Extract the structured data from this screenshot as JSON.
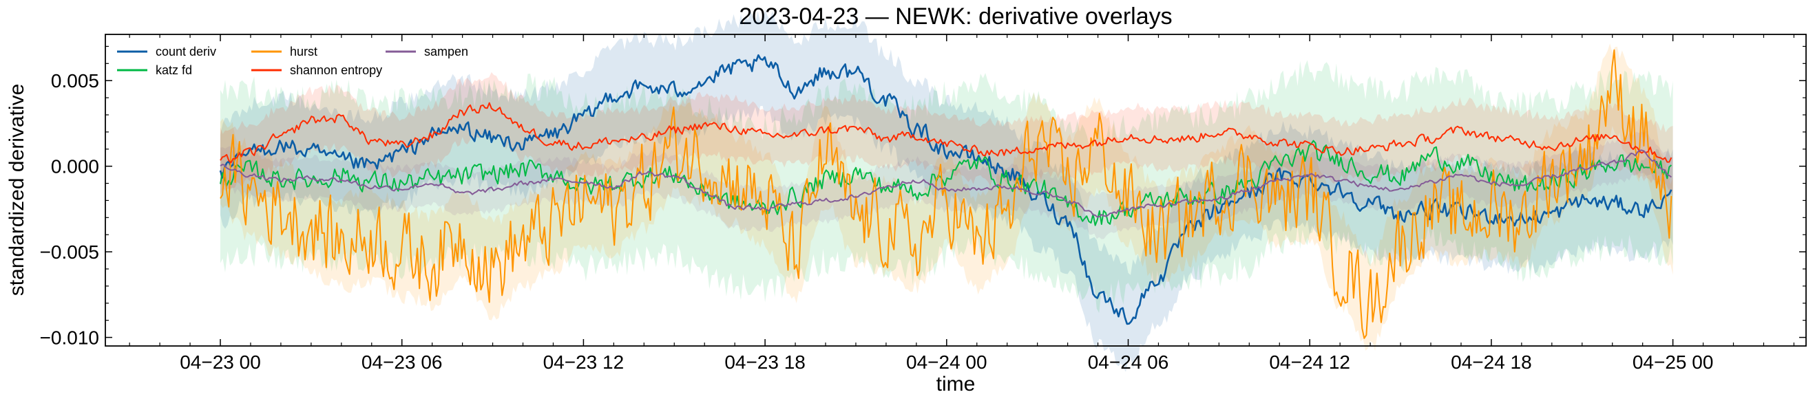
{
  "chart_data": {
    "type": "line",
    "title": "2023-04-23 — NEWK: derivative overlays",
    "xlabel": "time",
    "ylabel": "standardized derivative",
    "x_range_hours": [
      -3.8,
      52.4
    ],
    "ylim": [
      -0.0105,
      0.0077
    ],
    "x_ticks": [
      {
        "hour": 0,
        "label": "04−23 00"
      },
      {
        "hour": 6,
        "label": "04−23 06"
      },
      {
        "hour": 12,
        "label": "04−23 12"
      },
      {
        "hour": 18,
        "label": "04−23 18"
      },
      {
        "hour": 24,
        "label": "04−24 00"
      },
      {
        "hour": 30,
        "label": "04−24 06"
      },
      {
        "hour": 36,
        "label": "04−24 12"
      },
      {
        "hour": 42,
        "label": "04−24 18"
      },
      {
        "hour": 48,
        "label": "04−25 00"
      }
    ],
    "y_ticks": [
      {
        "value": 0.005,
        "label": "0.005"
      },
      {
        "value": 0.0,
        "label": "0.000"
      },
      {
        "value": -0.005,
        "label": "−0.005"
      },
      {
        "value": -0.01,
        "label": "−0.010"
      }
    ],
    "legend": {
      "position": "top-left",
      "columns": 3
    },
    "series": [
      {
        "name": "count deriv",
        "color": "#0C5DA5",
        "band_color": "#0C5DA5",
        "band_opacity": 0.14,
        "band_half_width": 0.0028,
        "x_hours": [
          0,
          1,
          2,
          3,
          4,
          5,
          6,
          7,
          8,
          9,
          10,
          11,
          12,
          13,
          14,
          15,
          16,
          17,
          18,
          19,
          20,
          21,
          22,
          23,
          24,
          25,
          26,
          27,
          28,
          29,
          30,
          31,
          32,
          33,
          34,
          35,
          36,
          37,
          38,
          39,
          40,
          41,
          42,
          43,
          44,
          45,
          46,
          47,
          48
        ],
        "values": [
          -0.0005,
          0.0008,
          0.0012,
          0.0008,
          0.0003,
          0.0,
          0.0008,
          0.0018,
          0.0022,
          0.0016,
          0.0013,
          0.0019,
          0.0028,
          0.0042,
          0.0046,
          0.0044,
          0.005,
          0.0057,
          0.006,
          0.0045,
          0.0055,
          0.0055,
          0.0038,
          0.0022,
          0.0009,
          0.0005,
          -0.0003,
          -0.0018,
          -0.0032,
          -0.0075,
          -0.0088,
          -0.0065,
          -0.0038,
          -0.0025,
          -0.0015,
          -0.0006,
          -0.0008,
          -0.0014,
          -0.0022,
          -0.0028,
          -0.0025,
          -0.0027,
          -0.0029,
          -0.0031,
          -0.0028,
          -0.002,
          -0.0022,
          -0.0025,
          -0.0018
        ]
      },
      {
        "name": "katz fd",
        "color": "#00B945",
        "band_color": "#00B945",
        "band_opacity": 0.12,
        "band_half_width": 0.0048,
        "x_hours": [
          0,
          1,
          2,
          3,
          4,
          5,
          6,
          7,
          8,
          9,
          10,
          11,
          12,
          13,
          14,
          15,
          16,
          17,
          18,
          19,
          20,
          21,
          22,
          23,
          24,
          25,
          26,
          27,
          28,
          29,
          30,
          31,
          32,
          33,
          34,
          35,
          36,
          37,
          38,
          39,
          40,
          41,
          42,
          43,
          44,
          45,
          46,
          47,
          48
        ],
        "values": [
          -0.0006,
          -0.0003,
          -0.0007,
          -0.0008,
          -0.0005,
          -0.0009,
          -0.001,
          -0.0008,
          -0.0006,
          -0.0004,
          -0.0002,
          -0.0004,
          -0.0012,
          -0.001,
          -0.0006,
          -0.0005,
          -0.0015,
          -0.0022,
          -0.0025,
          -0.0018,
          -0.0008,
          -0.0004,
          -0.0012,
          -0.0014,
          -0.0005,
          0.0002,
          -0.0008,
          -0.0012,
          -0.0024,
          -0.003,
          -0.0025,
          -0.002,
          -0.0018,
          -0.0016,
          -0.001,
          0.0002,
          0.0008,
          0.0004,
          -0.0003,
          -0.0006,
          0.0006,
          0.0002,
          -0.0006,
          -0.0012,
          -0.001,
          -0.0004,
          0.0002,
          0.0,
          -0.0004
        ]
      },
      {
        "name": "hurst",
        "color": "#FF9500",
        "band_color": "#FF9500",
        "band_opacity": 0.13,
        "band_half_width": 0.0026,
        "x_hours": [
          0,
          1,
          2,
          3,
          4,
          5,
          6,
          7,
          8,
          9,
          10,
          11,
          12,
          13,
          14,
          15,
          16,
          17,
          18,
          19,
          20,
          21,
          22,
          23,
          24,
          25,
          26,
          27,
          28,
          29,
          30,
          31,
          32,
          33,
          34,
          35,
          36,
          37,
          38,
          39,
          40,
          41,
          42,
          43,
          44,
          45,
          46,
          47,
          48
        ],
        "values": [
          0.0002,
          -0.0015,
          -0.0025,
          -0.0035,
          -0.0045,
          -0.004,
          -0.005,
          -0.0055,
          -0.004,
          -0.006,
          -0.0045,
          -0.0035,
          -0.002,
          -0.0025,
          -0.001,
          0.001,
          0.0005,
          -0.0008,
          -0.002,
          -0.005,
          0.0005,
          -0.003,
          -0.0035,
          -0.0045,
          -0.002,
          -0.0045,
          -0.003,
          0.0015,
          -0.001,
          0.0012,
          -0.002,
          -0.004,
          -0.003,
          -0.0015,
          -0.0005,
          -0.002,
          -0.0015,
          -0.0055,
          -0.008,
          -0.0045,
          -0.0025,
          -0.003,
          -0.0025,
          -0.003,
          -0.0005,
          0.0005,
          0.0045,
          0.002,
          -0.0035
        ]
      },
      {
        "name": "shannon entropy",
        "color": "#FF2C00",
        "band_color": "#FF2C00",
        "band_opacity": 0.12,
        "band_half_width": 0.0017,
        "x_hours": [
          0,
          1,
          2,
          3,
          4,
          5,
          6,
          7,
          8,
          9,
          10,
          11,
          12,
          13,
          14,
          15,
          16,
          17,
          18,
          19,
          20,
          21,
          22,
          23,
          24,
          25,
          26,
          27,
          28,
          29,
          30,
          31,
          32,
          33,
          34,
          35,
          36,
          37,
          38,
          39,
          40,
          41,
          42,
          43,
          44,
          45,
          46,
          47,
          48
        ],
        "values": [
          0.0003,
          0.0008,
          0.0017,
          0.0027,
          0.0028,
          0.0015,
          0.0012,
          0.0018,
          0.0032,
          0.0035,
          0.0022,
          0.0014,
          0.0012,
          0.0015,
          0.0016,
          0.0021,
          0.0024,
          0.0022,
          0.0018,
          0.0018,
          0.0021,
          0.0022,
          0.0016,
          0.0018,
          0.0013,
          0.0009,
          0.0008,
          0.0011,
          0.0012,
          0.0014,
          0.0018,
          0.0016,
          0.0016,
          0.002,
          0.0018,
          0.0014,
          0.0012,
          0.0009,
          0.001,
          0.0013,
          0.0016,
          0.0021,
          0.0017,
          0.0014,
          0.0012,
          0.0015,
          0.0018,
          0.001,
          0.0004
        ]
      },
      {
        "name": "sampen",
        "color": "#845B97",
        "band_color": "#845B97",
        "band_opacity": 0.12,
        "band_half_width": 0.0012,
        "x_hours": [
          0,
          1,
          2,
          3,
          4,
          5,
          6,
          7,
          8,
          9,
          10,
          11,
          12,
          13,
          14,
          15,
          16,
          17,
          18,
          19,
          20,
          21,
          22,
          23,
          24,
          25,
          26,
          27,
          28,
          29,
          30,
          31,
          32,
          33,
          34,
          35,
          36,
          37,
          38,
          39,
          40,
          41,
          42,
          43,
          44,
          45,
          46,
          47,
          48
        ],
        "values": [
          0.0,
          -0.0005,
          -0.0008,
          -0.0007,
          -0.0008,
          -0.0012,
          -0.0013,
          -0.001,
          -0.0016,
          -0.0014,
          -0.001,
          -0.0008,
          -0.0009,
          -0.0012,
          -0.0004,
          -0.0006,
          -0.0015,
          -0.0024,
          -0.0025,
          -0.0022,
          -0.002,
          -0.0018,
          -0.0012,
          -0.0008,
          -0.0014,
          -0.0013,
          -0.0012,
          -0.0015,
          -0.002,
          -0.0029,
          -0.0025,
          -0.0023,
          -0.0021,
          -0.0019,
          -0.0014,
          -0.0008,
          -0.0005,
          -0.0008,
          -0.0012,
          -0.0014,
          -0.0009,
          -0.0005,
          -0.001,
          -0.0011,
          -0.0006,
          -0.0002,
          0.0002,
          0.0008,
          -0.0006
        ]
      }
    ]
  }
}
